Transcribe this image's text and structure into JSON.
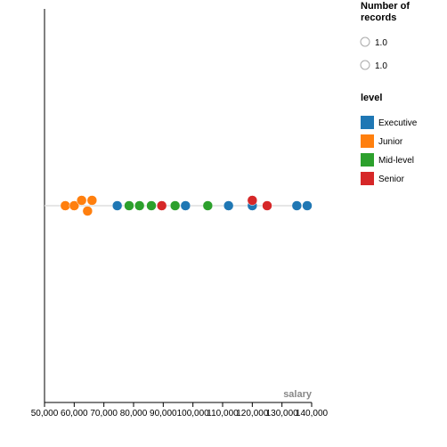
{
  "chart_data": {
    "type": "scatter",
    "xlabel": "salary",
    "ylabel": "",
    "xlim": [
      50000,
      140000
    ],
    "x_ticks": [
      "50,000",
      "60,000",
      "70,000",
      "80,000",
      "90,000",
      "100,000",
      "110,000",
      "120,000",
      "130,000",
      "140,000"
    ],
    "grid": false,
    "legend_position": "right",
    "size_legend": {
      "title": "Number of records",
      "entries": [
        "1.0",
        "1.0"
      ]
    },
    "color_legend": {
      "title": "level",
      "entries": [
        {
          "name": "Executive",
          "color": "#1f77b4"
        },
        {
          "name": "Junior",
          "color": "#ff7f0e"
        },
        {
          "name": "Mid-level",
          "color": "#2ca02c"
        },
        {
          "name": "Senior",
          "color": "#d62728"
        }
      ]
    },
    "series": [
      {
        "name": "Executive",
        "color": "#1f77b4",
        "x": [
          74500,
          97500,
          112000,
          120000,
          135000,
          138500
        ]
      },
      {
        "name": "Junior",
        "color": "#ff7f0e",
        "x": [
          57000,
          60000,
          62500,
          64500,
          66000
        ]
      },
      {
        "name": "Mid-level",
        "color": "#2ca02c",
        "x": [
          78500,
          82000,
          86000,
          94000,
          105000
        ]
      },
      {
        "name": "Senior",
        "color": "#d62728",
        "x": [
          89500,
          120000,
          125000
        ]
      }
    ]
  }
}
